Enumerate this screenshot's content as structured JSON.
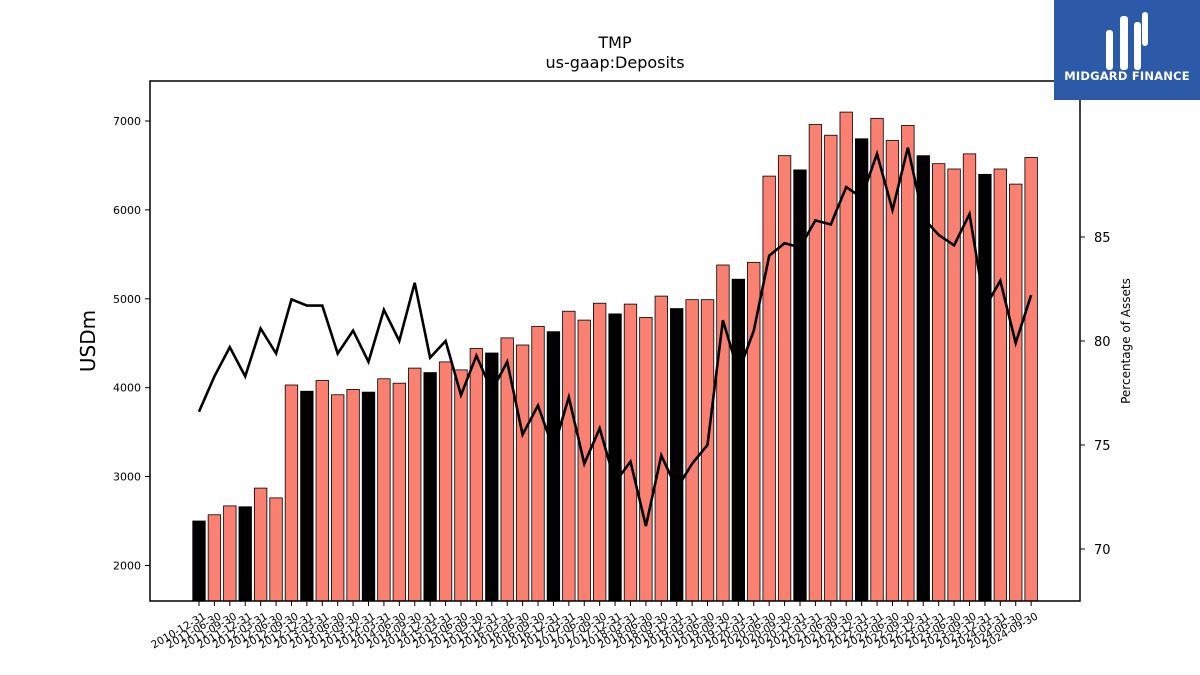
{
  "chart_data": {
    "type": "bar",
    "title": "TMP",
    "subtitle": "us-gaap:Deposits",
    "ylabel": "USDm",
    "y2label": "Percentage of Assets",
    "ylim": [
      1600,
      7450
    ],
    "y2lim": [
      67.5,
      92.5
    ],
    "yticks": [
      2000,
      3000,
      4000,
      5000,
      6000,
      7000
    ],
    "y2ticks": [
      70,
      75,
      80,
      85
    ],
    "colors": {
      "bar_default": "#fa8072",
      "bar_highlight": "#000000",
      "line": "#000000"
    },
    "categories": [
      "2010-12-31",
      "2011-06-30",
      "2011-09-30",
      "2011-12-31",
      "2012-03-31",
      "2012-06-30",
      "2012-09-30",
      "2012-12-31",
      "2013-03-31",
      "2013-06-30",
      "2013-09-30",
      "2013-12-31",
      "2014-03-31",
      "2014-06-30",
      "2014-09-30",
      "2014-12-31",
      "2015-03-31",
      "2015-06-30",
      "2015-09-30",
      "2015-12-31",
      "2016-03-31",
      "2016-06-30",
      "2016-09-30",
      "2016-12-31",
      "2017-03-31",
      "2017-06-30",
      "2017-09-30",
      "2017-12-31",
      "2018-03-31",
      "2018-06-30",
      "2018-09-30",
      "2018-12-31",
      "2019-03-31",
      "2019-06-30",
      "2019-09-30",
      "2019-12-31",
      "2020-03-31",
      "2020-06-30",
      "2020-09-30",
      "2020-12-31",
      "2021-03-31",
      "2021-06-30",
      "2021-09-30",
      "2021-12-31",
      "2022-03-31",
      "2022-06-30",
      "2022-09-30",
      "2022-12-31",
      "2023-03-31",
      "2023-06-30",
      "2023-09-30",
      "2023-12-31",
      "2024-03-31",
      "2024-06-30",
      "2024-09-30"
    ],
    "series": [
      {
        "kind": "bar",
        "values": [
          2500,
          2570,
          2670,
          2660,
          2870,
          2760,
          4030,
          3960,
          4080,
          3920,
          3980,
          3950,
          4100,
          4050,
          4220,
          4170,
          4290,
          4200,
          4440,
          4390,
          4560,
          4480,
          4690,
          4630,
          4860,
          4760,
          4950,
          4830,
          4940,
          4790,
          5030,
          4890,
          4990,
          4990,
          5380,
          5220,
          5410,
          6380,
          6610,
          6450,
          6960,
          6840,
          7100,
          6800,
          7030,
          6780,
          6950,
          6610,
          6520,
          6460,
          6630,
          6400,
          6460,
          6290,
          6590
        ],
        "highlight": [
          true,
          false,
          false,
          true,
          false,
          false,
          false,
          true,
          false,
          false,
          false,
          true,
          false,
          false,
          false,
          true,
          false,
          false,
          false,
          true,
          false,
          false,
          false,
          true,
          false,
          false,
          false,
          true,
          false,
          false,
          false,
          true,
          false,
          false,
          false,
          true,
          false,
          false,
          false,
          true,
          false,
          false,
          false,
          true,
          false,
          false,
          false,
          true,
          false,
          false,
          false,
          true,
          false,
          false,
          false
        ]
      },
      {
        "kind": "line",
        "axis": "right",
        "values": [
          76.6,
          78.3,
          79.7,
          78.3,
          80.6,
          79.4,
          82.0,
          81.7,
          81.7,
          79.4,
          80.5,
          79.0,
          81.5,
          80.0,
          82.8,
          79.2,
          80.0,
          77.4,
          79.3,
          77.6,
          79.0,
          75.5,
          76.9,
          74.8,
          77.3,
          74.1,
          75.8,
          73.2,
          74.2,
          71.1,
          74.5,
          72.9,
          74.1,
          75.0,
          81.0,
          78.5,
          80.5,
          84.1,
          84.7,
          84.5,
          85.8,
          85.6,
          87.4,
          86.9,
          89.0,
          86.3,
          89.3,
          85.9,
          85.1,
          84.6,
          86.1,
          81.6,
          82.9,
          79.9,
          82.2
        ]
      }
    ]
  }
}
